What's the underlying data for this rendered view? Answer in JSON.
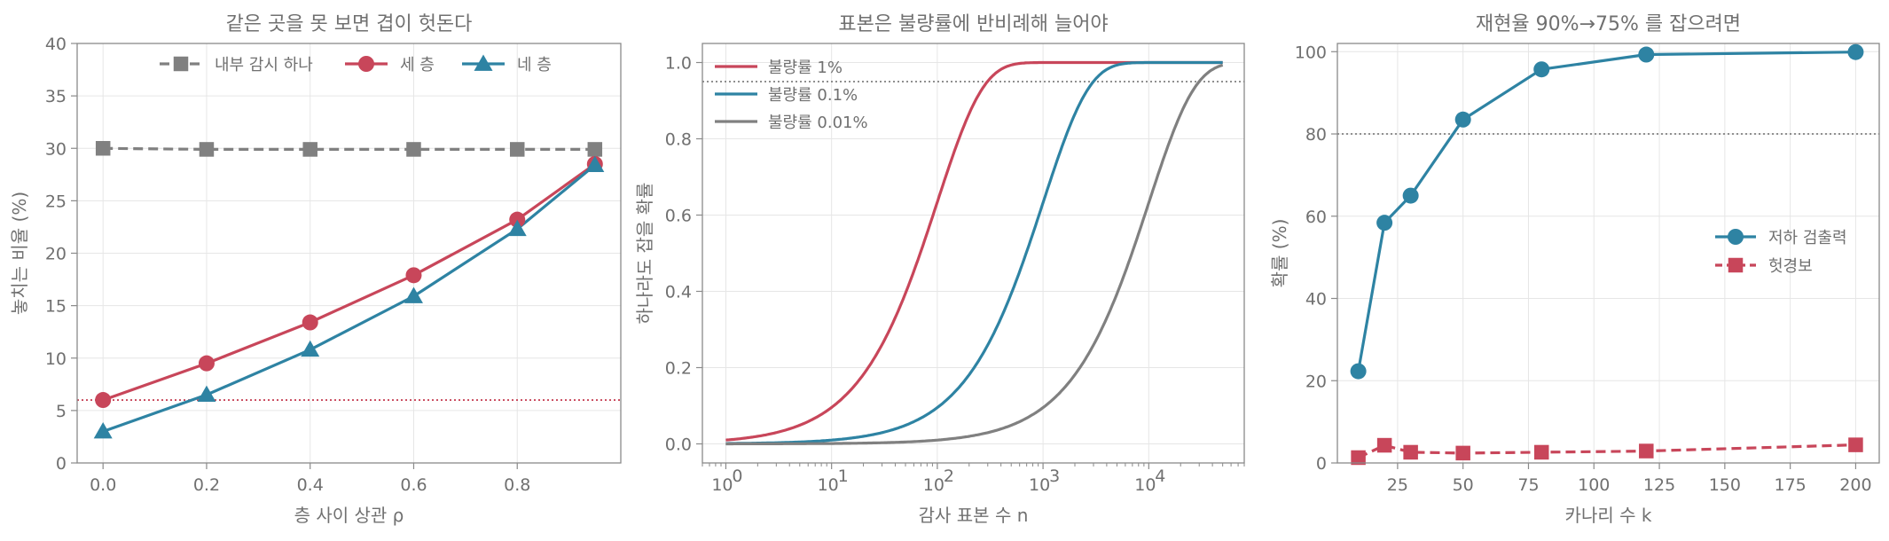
{
  "colors": {
    "gray": "#808080",
    "red": "#c8465a",
    "blue": "#2e83a3",
    "text": "#707070",
    "axis": "#8a8a8a",
    "grid": "#e6e6e6"
  },
  "chart_data": [
    {
      "type": "line",
      "title": "같은 곳을 못 보면 겹이 헛돈다",
      "xlabel": "층 사이 상관 ρ",
      "ylabel": "놓치는 비율 (%)",
      "xlim": [
        -0.05,
        1.0
      ],
      "ylim": [
        0,
        40
      ],
      "xticks": [
        0.0,
        0.2,
        0.4,
        0.6,
        0.8
      ],
      "xtick_labels": [
        "0.0",
        "0.2",
        "0.4",
        "0.6",
        "0.8"
      ],
      "yticks": [
        0,
        5,
        10,
        15,
        20,
        25,
        30,
        35,
        40
      ],
      "grid": true,
      "legend_position": "top-center",
      "x": [
        0.0,
        0.2,
        0.4,
        0.6,
        0.8,
        0.95
      ],
      "series": [
        {
          "name": "내부 감시 하나",
          "color": "#808080",
          "marker": "square",
          "dash": true,
          "values": [
            30.0,
            29.9,
            29.9,
            29.9,
            29.9,
            29.9
          ]
        },
        {
          "name": "세 층",
          "color": "#c8465a",
          "marker": "circle",
          "dash": false,
          "values": [
            6.0,
            9.5,
            13.4,
            17.9,
            23.2,
            28.5
          ]
        },
        {
          "name": "네 층",
          "color": "#2e83a3",
          "marker": "triangle",
          "dash": false,
          "values": [
            3.0,
            6.5,
            10.8,
            15.9,
            22.3,
            28.4
          ]
        }
      ],
      "reference_lines": [
        {
          "y": 6,
          "color": "#c8465a"
        }
      ]
    },
    {
      "type": "line",
      "title": "표본은 불량률에 반비례해 늘어야",
      "xlabel": "감사 표본 수 n",
      "ylabel": "하나라도 잡을 확률",
      "xscale": "log",
      "xlim": [
        0.6,
        80000
      ],
      "ylim": [
        -0.05,
        1.05
      ],
      "xticks": [
        1,
        10,
        100,
        1000,
        10000
      ],
      "xtick_labels": [
        {
          "base": "10",
          "exp": "0"
        },
        {
          "base": "10",
          "exp": "1"
        },
        {
          "base": "10",
          "exp": "2"
        },
        {
          "base": "10",
          "exp": "3"
        },
        {
          "base": "10",
          "exp": "4"
        }
      ],
      "yticks": [
        0.0,
        0.2,
        0.4,
        0.6,
        0.8,
        1.0
      ],
      "ytick_labels": [
        "0.0",
        "0.2",
        "0.4",
        "0.6",
        "0.8",
        "1.0"
      ],
      "grid": true,
      "legend_position": "top-left",
      "x_range": [
        1,
        50000
      ],
      "formula": "1-(1-p)^n",
      "series": [
        {
          "name": "불량률 1%",
          "color": "#c8465a",
          "p": 0.01
        },
        {
          "name": "불량률 0.1%",
          "color": "#2e83a3",
          "p": 0.001
        },
        {
          "name": "불량률 0.01%",
          "color": "#808080",
          "p": 0.0001
        }
      ],
      "reference_lines": [
        {
          "y": 0.95,
          "color": "#808080"
        }
      ]
    },
    {
      "type": "line",
      "title": "재현율 90%→75% 를 잡으려면",
      "xlabel": "카나리 수 k",
      "ylabel": "확률 (%)",
      "xlim": [
        2,
        209
      ],
      "ylim": [
        0,
        102
      ],
      "xticks": [
        25,
        50,
        75,
        100,
        125,
        150,
        175,
        200
      ],
      "yticks": [
        0,
        20,
        40,
        60,
        80,
        100
      ],
      "grid": true,
      "legend_position": "center-right",
      "series": [
        {
          "name": "저하 검출력",
          "color": "#2e83a3",
          "marker": "circle",
          "dash": false,
          "x": [
            10,
            20,
            30,
            50,
            80,
            120,
            200
          ],
          "values": [
            22.3,
            58.4,
            65.0,
            83.5,
            95.7,
            99.3,
            99.9
          ]
        },
        {
          "name": "헛경보",
          "color": "#c8465a",
          "marker": "square",
          "dash": true,
          "x": [
            10,
            20,
            30,
            50,
            80,
            120,
            200
          ],
          "values": [
            1.3,
            4.3,
            2.6,
            2.4,
            2.6,
            2.9,
            4.4
          ]
        }
      ],
      "reference_lines": [
        {
          "y": 80,
          "color": "#808080"
        }
      ]
    }
  ]
}
